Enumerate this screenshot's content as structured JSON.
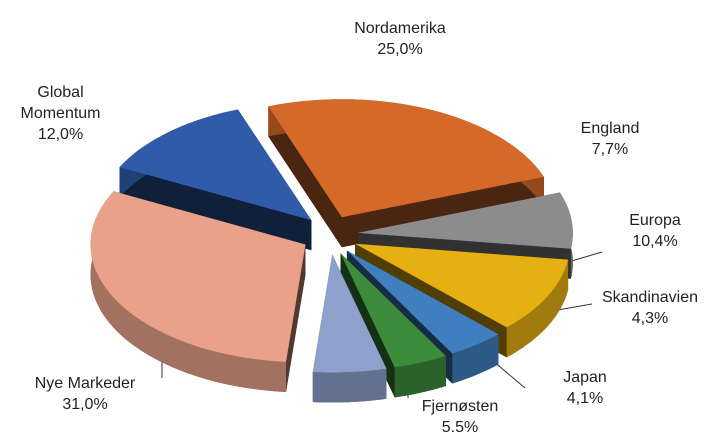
{
  "chart_data": {
    "type": "pie",
    "categories": [
      "Nordamerika",
      "England",
      "Europa",
      "Skandinavien",
      "Japan",
      "Fjernøsten",
      "Nye Markeder",
      "Global Momentum"
    ],
    "values": [
      25.0,
      7.7,
      10.4,
      4.3,
      4.1,
      5.5,
      31.0,
      12.0
    ],
    "value_labels": [
      "25,0%",
      "7,7%",
      "10,4%",
      "4,3%",
      "4,1%",
      "5,5%",
      "31,0%",
      "12,0%"
    ],
    "colors": [
      "#d4692a",
      "#8c8c8c",
      "#e6b012",
      "#3f7fbf",
      "#3c8c3c",
      "#8ea0cc",
      "#e9a189",
      "#2f5ba8"
    ]
  }
}
